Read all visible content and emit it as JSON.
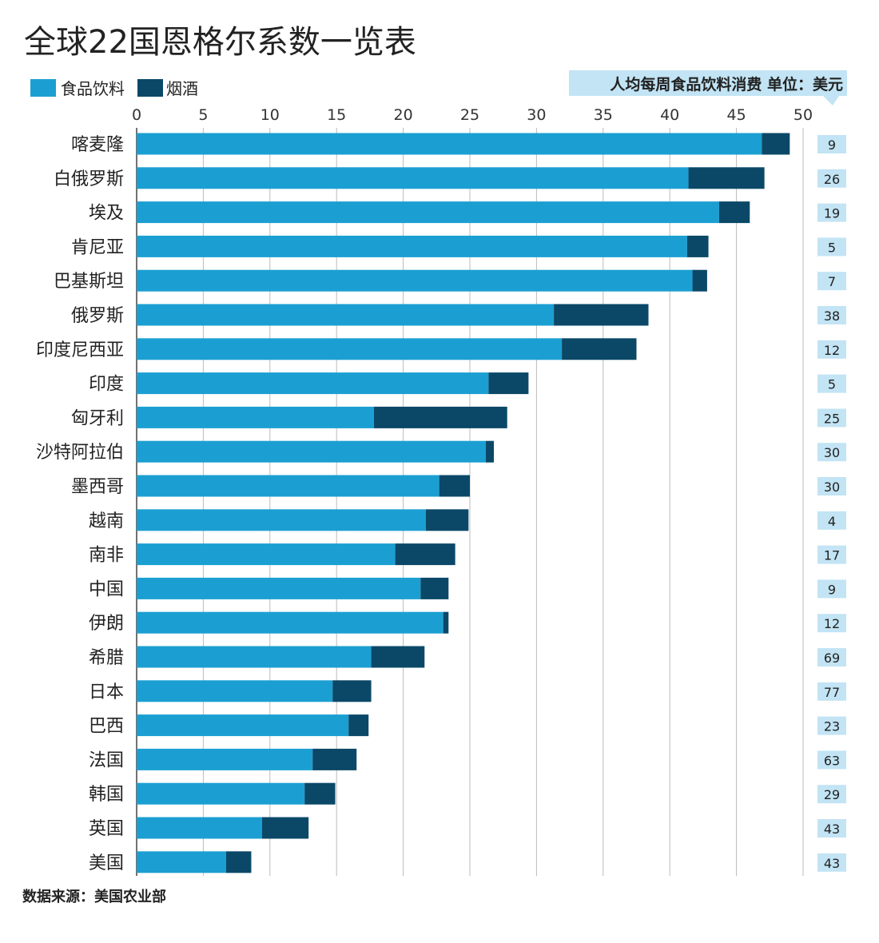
{
  "chart_data": {
    "type": "bar",
    "orientation": "horizontal",
    "stacked": true,
    "title": "全球22国恩格尔系数一览表",
    "legend": {
      "placement": "top-left",
      "entries": [
        "食品饮料",
        "烟酒"
      ]
    },
    "right_column_header": "人均每周食品饮料消费 单位：美元",
    "source": "数据来源：美国农业部",
    "xlim": [
      0,
      50
    ],
    "xticks": [
      0,
      5,
      10,
      15,
      20,
      25,
      30,
      35,
      40,
      45,
      50
    ],
    "grid": true,
    "categories": [
      "喀麦隆",
      "白俄罗斯",
      "埃及",
      "肯尼亚",
      "巴基斯坦",
      "俄罗斯",
      "印度尼西亚",
      "印度",
      "匈牙利",
      "沙特阿拉伯",
      "墨西哥",
      "越南",
      "南非",
      "中国",
      "伊朗",
      "希腊",
      "日本",
      "巴西",
      "法国",
      "韩国",
      "英国",
      "美国"
    ],
    "series": [
      {
        "name": "食品饮料",
        "color": "#1b9fd2",
        "values": [
          46.9,
          41.4,
          43.7,
          41.3,
          41.7,
          31.3,
          31.9,
          26.4,
          17.8,
          26.2,
          22.7,
          21.7,
          19.4,
          21.3,
          23.0,
          17.6,
          14.7,
          15.9,
          13.2,
          12.6,
          9.4,
          6.7
        ]
      },
      {
        "name": "烟酒",
        "color": "#0b4868",
        "values": [
          2.1,
          5.7,
          2.3,
          1.6,
          1.1,
          7.1,
          5.6,
          3.0,
          10.0,
          0.6,
          2.3,
          3.2,
          4.5,
          2.1,
          0.4,
          4.0,
          2.9,
          1.5,
          3.3,
          2.3,
          3.5,
          1.9
        ]
      }
    ],
    "weekly_spending_usd": [
      "9",
      "26",
      "19",
      "5",
      "7",
      "38",
      "12",
      "5",
      "25",
      "30",
      "30",
      "4",
      "17",
      "9",
      "12",
      "69",
      "77",
      "23",
      "63",
      "29",
      "43",
      "43"
    ]
  },
  "colors": {
    "label_box": "#c2e4f4"
  }
}
